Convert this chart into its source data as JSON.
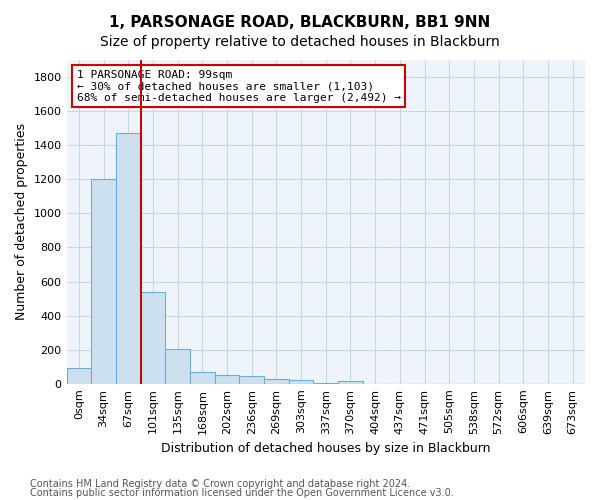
{
  "title": "1, PARSONAGE ROAD, BLACKBURN, BB1 9NN",
  "subtitle": "Size of property relative to detached houses in Blackburn",
  "xlabel": "Distribution of detached houses by size in Blackburn",
  "ylabel": "Number of detached properties",
  "footnote1": "Contains HM Land Registry data © Crown copyright and database right 2024.",
  "footnote2": "Contains public sector information licensed under the Open Government Licence v3.0.",
  "bar_labels": [
    "0sqm",
    "34sqm",
    "67sqm",
    "101sqm",
    "135sqm",
    "168sqm",
    "202sqm",
    "236sqm",
    "269sqm",
    "303sqm",
    "337sqm",
    "370sqm",
    "404sqm",
    "437sqm",
    "471sqm",
    "505sqm",
    "538sqm",
    "572sqm",
    "606sqm",
    "639sqm",
    "673sqm"
  ],
  "bar_heights": [
    90,
    1200,
    1470,
    540,
    205,
    70,
    50,
    45,
    30,
    20,
    5,
    15,
    0,
    0,
    0,
    0,
    0,
    0,
    0,
    0,
    0
  ],
  "bar_color": "#cce0f0",
  "bar_edge_color": "#6bafd6",
  "grid_color": "#c8d8e8",
  "background_color": "#eef4fa",
  "vline_color": "#cc0000",
  "vline_pos": 2.5,
  "annotation_text": "1 PARSONAGE ROAD: 99sqm\n← 30% of detached houses are smaller (1,103)\n68% of semi-detached houses are larger (2,492) →",
  "annotation_box_color": "#cc0000",
  "ylim": [
    0,
    1900
  ],
  "yticks": [
    0,
    200,
    400,
    600,
    800,
    1000,
    1200,
    1400,
    1600,
    1800
  ],
  "title_fontsize": 11,
  "subtitle_fontsize": 10,
  "axis_label_fontsize": 9,
  "tick_fontsize": 8,
  "annotation_fontsize": 8,
  "footnote_fontsize": 7
}
